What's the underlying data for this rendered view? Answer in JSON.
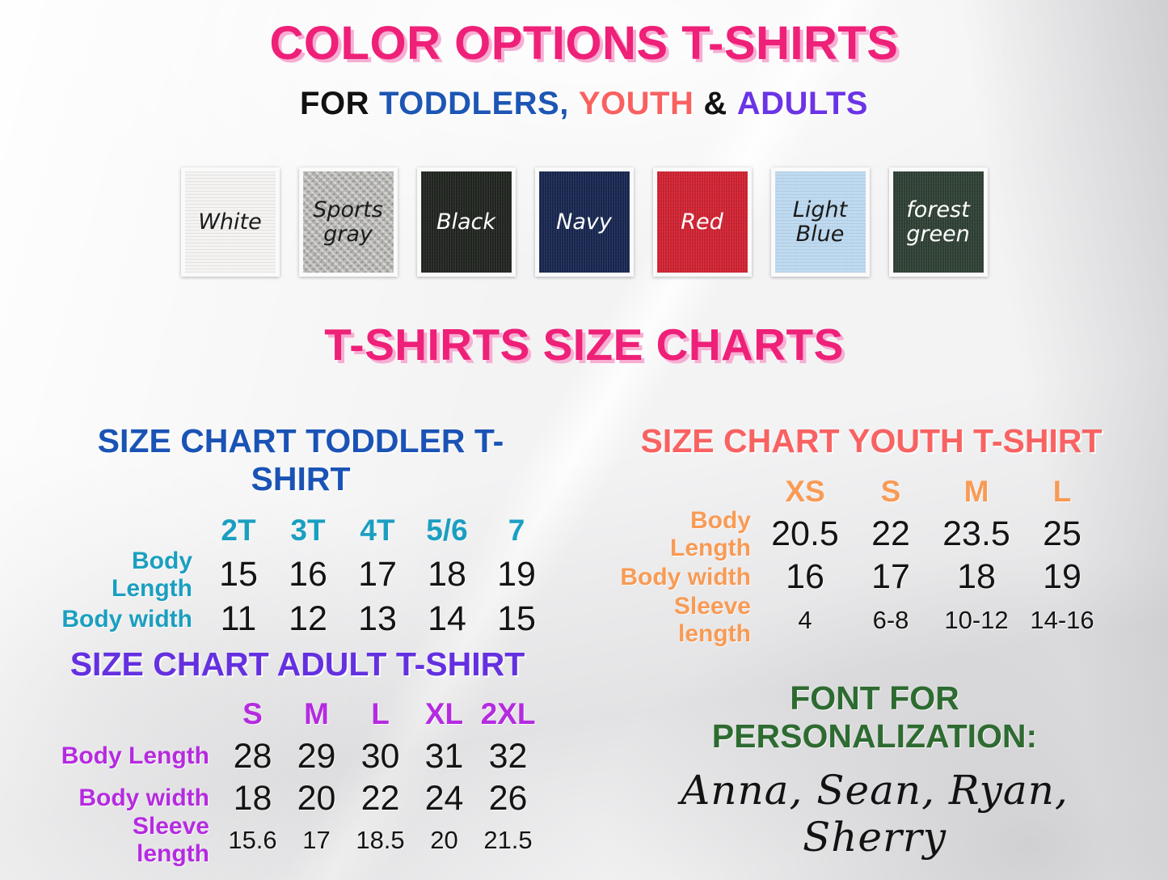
{
  "header": {
    "title": "COLOR OPTIONS T-SHIRTS",
    "subtitle": {
      "for": "FOR",
      "toddlers": "TODDLERS,",
      "youth": "YOUTH",
      "amp": "&",
      "adults": "ADULTS"
    },
    "section_title": "T-SHIRTS SIZE CHARTS"
  },
  "palette": {
    "title_pink": "#ee2078",
    "title_pink_shadow": "#f7aed3",
    "toddlers_blue": "#1d56b4",
    "youth_coral": "#f96161",
    "adults_purple": "#6b34e6",
    "toddler_title_blue": "#1a53b5",
    "toddler_accent_teal": "#1b9fc0",
    "youth_title_coral": "#f96262",
    "youth_accent_orange": "#f89b55",
    "adult_title_violet": "#6430e0",
    "adult_accent_magenta": "#b52be0",
    "personalization_green": "#2e6b31",
    "values_black": "#141414"
  },
  "swatches": [
    {
      "label": "White",
      "fabric": "#f4f3f2",
      "text_color": "#1b1b1b"
    },
    {
      "label": "Sports gray",
      "fabric": "#b7b6b3",
      "text_color": "#1b1b1b"
    },
    {
      "label": "Black",
      "fabric": "#20241f",
      "text_color": "#ffffff"
    },
    {
      "label": "Navy",
      "fabric": "#17264f",
      "text_color": "#ffffff"
    },
    {
      "label": "Red",
      "fabric": "#ce2130",
      "text_color": "#ffffff"
    },
    {
      "label": "Light Blue",
      "fabric": "#bcd9f0",
      "text_color": "#1b1b1b"
    },
    {
      "label": "forest green",
      "fabric": "#2e3f33",
      "text_color": "#ffffff"
    }
  ],
  "charts": {
    "toddler": {
      "title": "SIZE CHART TODDLER T-SHIRT",
      "columns": [
        "2T",
        "3T",
        "4T",
        "5/6",
        "7"
      ],
      "rows": [
        {
          "label": "Body Length",
          "values": [
            "15",
            "16",
            "17",
            "18",
            "19"
          ]
        },
        {
          "label": "Body width",
          "values": [
            "11",
            "12",
            "13",
            "14",
            "15"
          ]
        }
      ]
    },
    "youth": {
      "title": "SIZE CHART YOUTH T-SHIRT",
      "columns": [
        "XS",
        "S",
        "M",
        "L"
      ],
      "rows": [
        {
          "label": "Body Length",
          "values": [
            "20.5",
            "22",
            "23.5",
            "25"
          ]
        },
        {
          "label": "Body width",
          "values": [
            "16",
            "17",
            "18",
            "19"
          ]
        },
        {
          "label": "Sleeve length",
          "values": [
            "4",
            "6-8",
            "10-12",
            "14-16"
          ]
        }
      ]
    },
    "adult": {
      "title": "SIZE CHART ADULT T-SHIRT",
      "columns": [
        "S",
        "M",
        "L",
        "XL",
        "2XL"
      ],
      "rows": [
        {
          "label": "Body Length",
          "values": [
            "28",
            "29",
            "30",
            "31",
            "32"
          ]
        },
        {
          "label": "Body width",
          "values": [
            "18",
            "20",
            "22",
            "24",
            "26"
          ]
        },
        {
          "label": "Sleeve length",
          "values": [
            "15.6",
            "17",
            "18.5",
            "20",
            "21.5"
          ]
        }
      ]
    }
  },
  "personalization": {
    "title": "FONT FOR PERSONALIZATION:",
    "names": "Anna, Sean, Ryan, Sherry"
  }
}
